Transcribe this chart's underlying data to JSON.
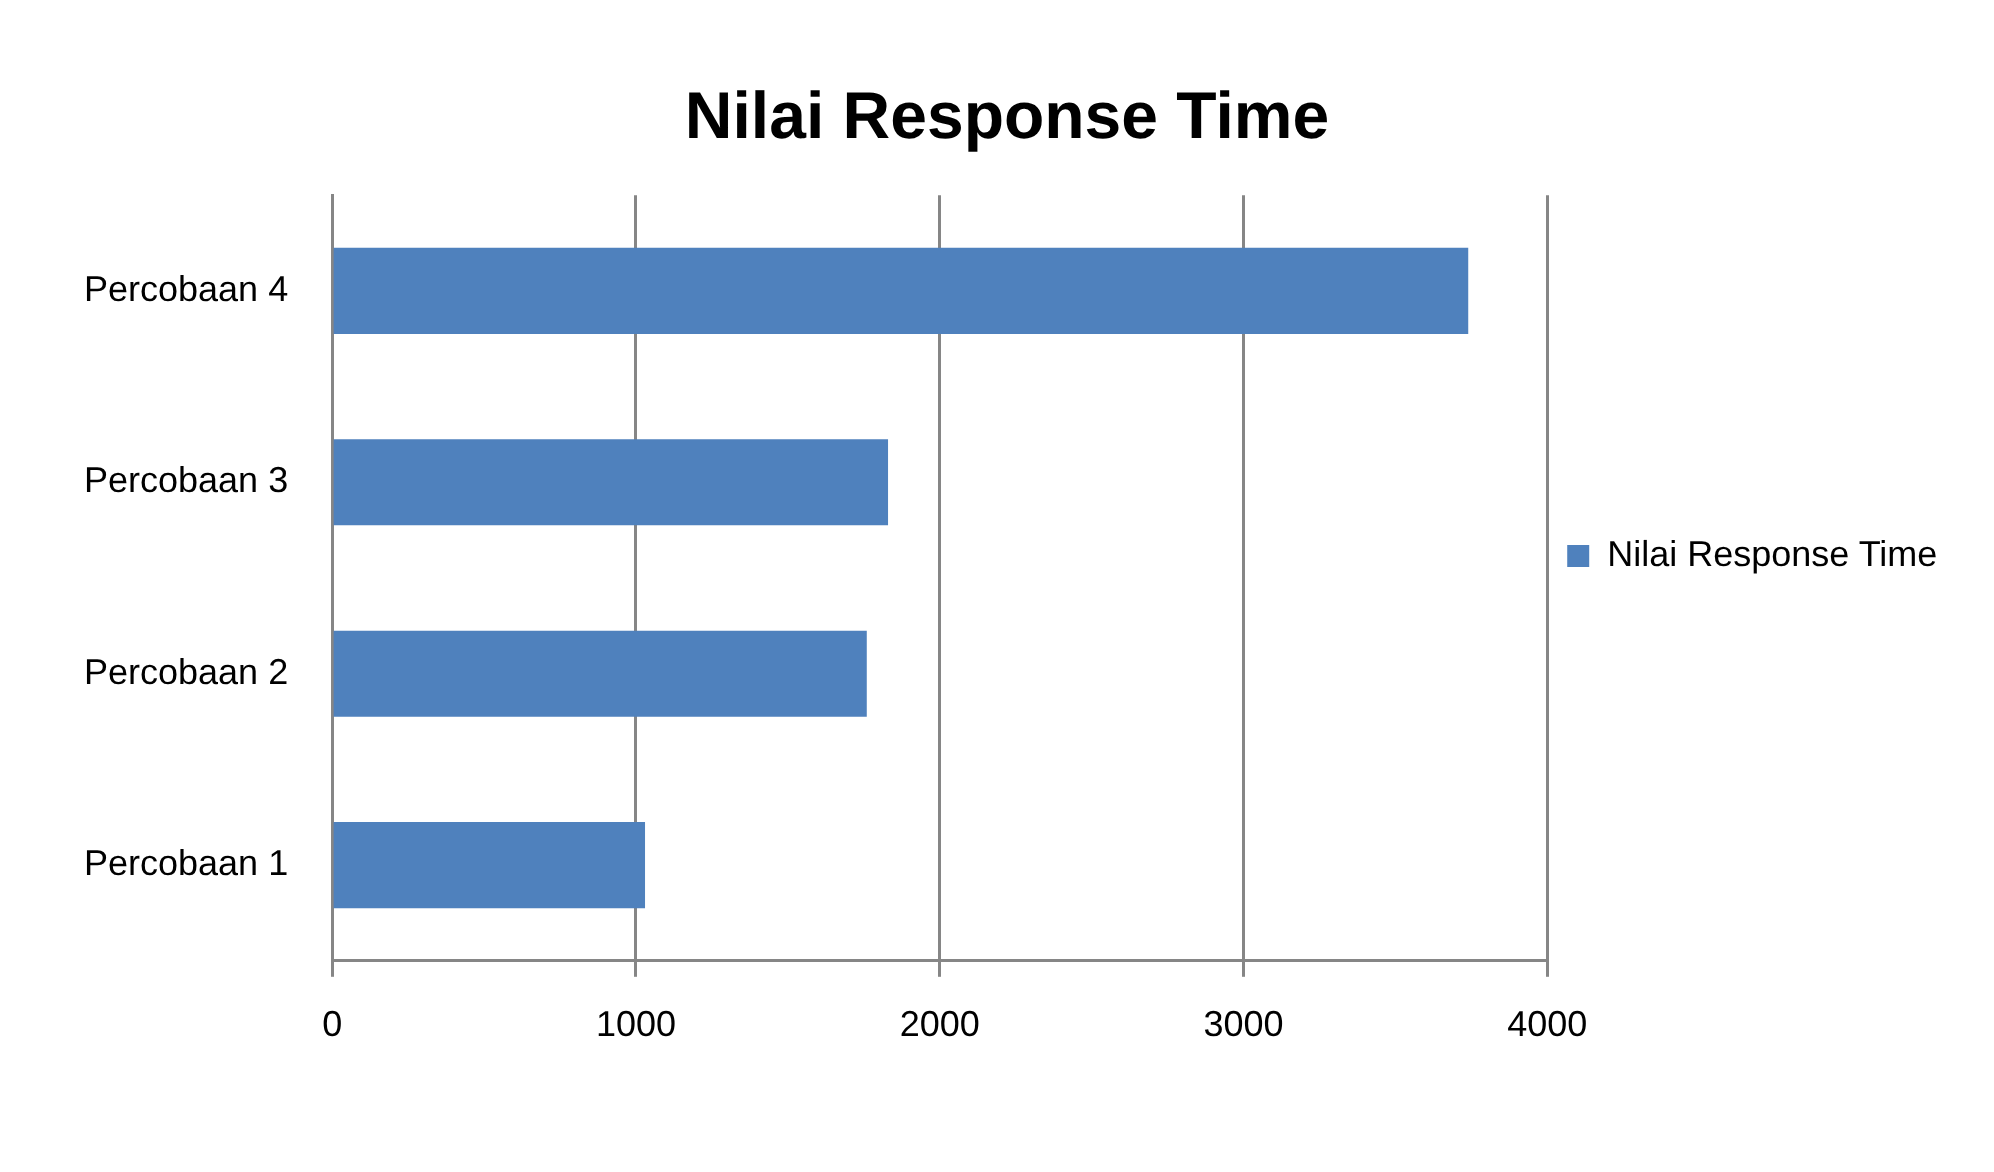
{
  "chart_data": {
    "type": "bar",
    "orientation": "horizontal",
    "title": "Nilai Response Time",
    "categories": [
      "Percobaan 4",
      "Percobaan 3",
      "Percobaan 2",
      "Percobaan 1"
    ],
    "series": [
      {
        "name": "Nilai Response Time",
        "color": "#4f81bd",
        "values": [
          3740,
          1830,
          1760,
          1030
        ]
      }
    ],
    "xlim": [
      0,
      4000
    ],
    "xticks": [
      0,
      1000,
      2000,
      3000,
      4000
    ],
    "grid": "x",
    "legend": "right"
  }
}
